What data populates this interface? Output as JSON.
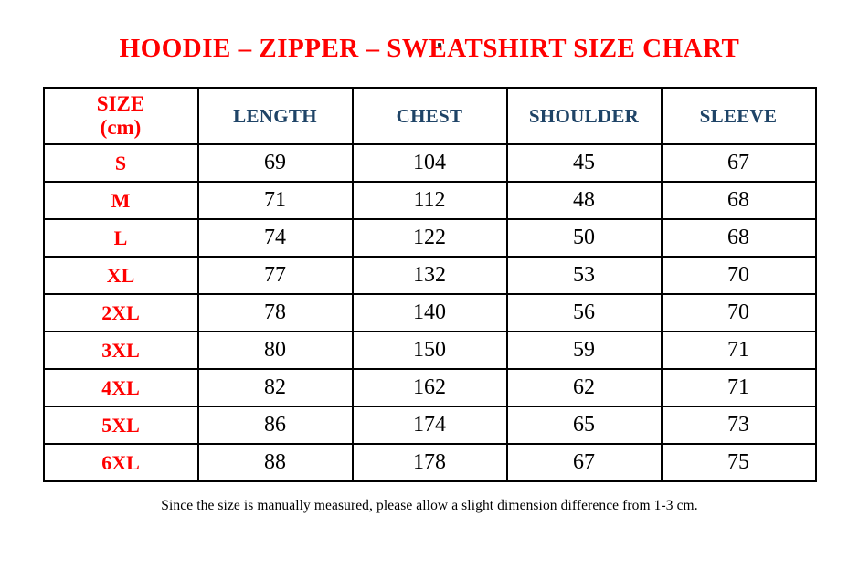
{
  "page": {
    "title": "HOODIE – ZIPPER – SWEATSHIRT SIZE CHART",
    "footer_note": "Since the size is manually measured, please allow a slight dimension difference from 1-3 cm."
  },
  "colors": {
    "title_red": "#ff0000",
    "size_label_red": "#ff0000",
    "header_blue": "#1f4467",
    "value_black": "#000000",
    "border_black": "#000000",
    "background": "#ffffff"
  },
  "size_header": {
    "line1": "SIZE",
    "line2": "(cm)"
  },
  "chart_data": {
    "type": "table",
    "title": "HOODIE – ZIPPER – SWEATSHIRT SIZE CHART",
    "unit": "cm",
    "columns": [
      "SIZE (cm)",
      "LENGTH",
      "CHEST",
      "SHOULDER",
      "SLEEVE"
    ],
    "rows": [
      [
        "S",
        69,
        104,
        45,
        67
      ],
      [
        "M",
        71,
        112,
        48,
        68
      ],
      [
        "L",
        74,
        122,
        50,
        68
      ],
      [
        "XL",
        77,
        132,
        53,
        70
      ],
      [
        "2XL",
        78,
        140,
        56,
        70
      ],
      [
        "3XL",
        80,
        150,
        59,
        71
      ],
      [
        "4XL",
        82,
        162,
        62,
        71
      ],
      [
        "5XL",
        86,
        174,
        65,
        73
      ],
      [
        "6XL",
        88,
        178,
        67,
        75
      ]
    ],
    "note": "Since the size is manually measured, please allow a slight dimension difference from 1-3 cm."
  }
}
